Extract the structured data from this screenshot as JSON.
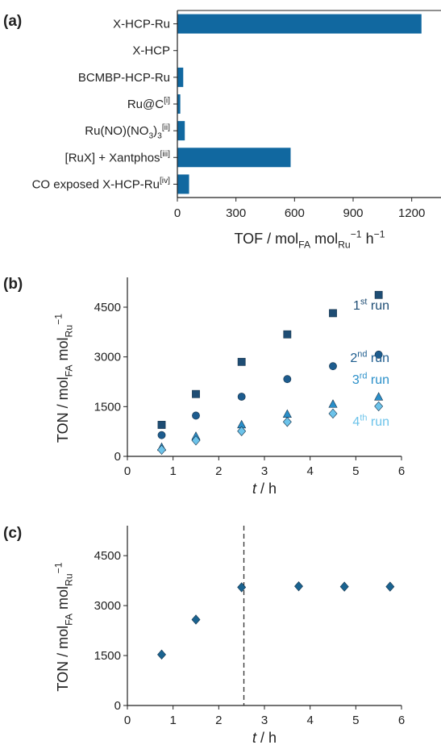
{
  "colors": {
    "bar": "#1168a0",
    "run1": "#1e4d74",
    "run2": "#1d5c8e",
    "run3": "#2a8fc9",
    "run4": "#6cc3ea",
    "panel_c": "#1a6390",
    "axis": "#222222"
  },
  "chart_data": [
    {
      "panel_label": "(a)",
      "type": "bar",
      "orientation": "horizontal",
      "categories": [
        {
          "base": "X-HCP-Ru",
          "sup": ""
        },
        {
          "base": "X-HCP",
          "sup": ""
        },
        {
          "base": "BCMBP-HCP-Ru",
          "sup": ""
        },
        {
          "base": "Ru@C",
          "sup": "[i]"
        },
        {
          "base": "Ru(NO)(NO",
          "sub": "3",
          "post": ")",
          "sub2": "3",
          "sup": "[ii]"
        },
        {
          "base": "[RuX] + Xantphos",
          "sup": "[iii]"
        },
        {
          "base": "CO exposed X-HCP-Ru",
          "sup": "[iv]"
        }
      ],
      "values": [
        1250,
        0,
        30,
        15,
        38,
        580,
        60
      ],
      "xlim": [
        0,
        1350
      ],
      "xticks": [
        "0",
        "300",
        "600",
        "900",
        "1200"
      ],
      "xlabel": {
        "main": "TOF / mol",
        "sub1": "FA",
        "mid": " mol",
        "sub2": "Ru",
        "sup": "−1",
        "tail": " h",
        "sup2": "−1"
      }
    },
    {
      "panel_label": "(b)",
      "type": "scatter",
      "xlim": [
        0,
        6
      ],
      "ylim": [
        0,
        5400
      ],
      "xticks": [
        "0",
        "1",
        "2",
        "3",
        "4",
        "5",
        "6"
      ],
      "yticks": [
        "0",
        "1500",
        "3000",
        "4500"
      ],
      "xlabel": {
        "italic": "t",
        "rest": " / h"
      },
      "ylabel": {
        "main": "TON / mol",
        "sub1": "FA",
        "mid": " mol",
        "sub2": "Ru",
        "sup": "−1"
      },
      "series": [
        {
          "name": {
            "num": "1",
            "sup": "st",
            "rest": " run"
          },
          "marker": "square",
          "x": [
            0.75,
            1.5,
            2.5,
            3.5,
            4.5,
            5.5
          ],
          "y": [
            950,
            1880,
            2850,
            3680,
            4320,
            4870
          ]
        },
        {
          "name": {
            "num": "2",
            "sup": "nd",
            "rest": " run"
          },
          "marker": "circle",
          "x": [
            0.75,
            1.5,
            2.5,
            3.5,
            4.5,
            5.5
          ],
          "y": [
            640,
            1230,
            1800,
            2330,
            2720,
            3070
          ]
        },
        {
          "name": {
            "num": "3",
            "sup": "rd",
            "rest": " run"
          },
          "marker": "triangle",
          "x": [
            0.75,
            1.5,
            2.5,
            3.5,
            4.5,
            5.5
          ],
          "y": [
            270,
            600,
            950,
            1270,
            1570,
            1790
          ]
        },
        {
          "name": {
            "num": "4",
            "sup": "th",
            "rest": " run"
          },
          "marker": "diamond",
          "x": [
            0.75,
            1.5,
            2.5,
            3.5,
            4.5,
            5.5
          ],
          "y": [
            200,
            480,
            760,
            1040,
            1290,
            1510
          ]
        }
      ]
    },
    {
      "panel_label": "(c)",
      "type": "scatter",
      "xlim": [
        0,
        6
      ],
      "ylim": [
        0,
        5400
      ],
      "xticks": [
        "0",
        "1",
        "2",
        "3",
        "4",
        "5",
        "6"
      ],
      "yticks": [
        "0",
        "1500",
        "3000",
        "4500"
      ],
      "xlabel": {
        "italic": "t",
        "rest": " / h"
      },
      "ylabel": {
        "main": "TON / mol",
        "sub1": "FA",
        "mid": " mol",
        "sub2": "Ru",
        "sup": "−1"
      },
      "vline_x": 2.55,
      "series": [
        {
          "marker": "diamond",
          "x": [
            0.75,
            1.5,
            2.5,
            3.75,
            4.75,
            5.75
          ],
          "y": [
            1530,
            2580,
            3550,
            3580,
            3570,
            3570
          ]
        }
      ]
    }
  ]
}
